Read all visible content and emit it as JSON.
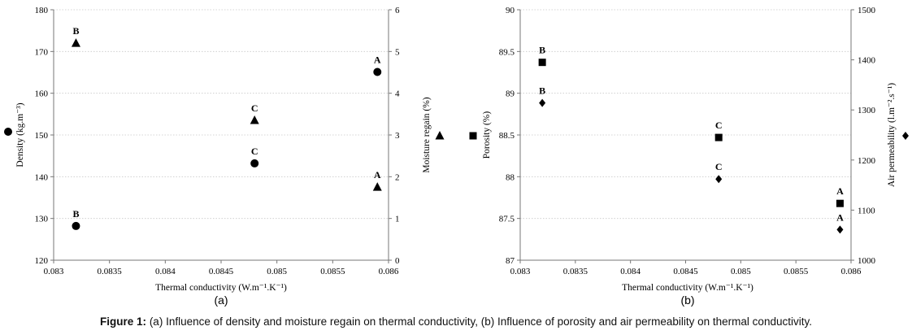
{
  "figure": {
    "caption_prefix": "Figure 1:",
    "caption_text": "(a) Influence of density and moisture regain on thermal conductivity, (b) Influence of porosity and air permeability on thermal conductivity.",
    "color": "#000000"
  },
  "chart_data": [
    {
      "type": "scatter",
      "panel_label": "(a)",
      "xlabel": "Thermal conductivity (W.m⁻¹.K⁻¹)",
      "ylabel_left": "Density (kg.m⁻³)",
      "ylabel_right": "Moisture regain (%)",
      "xlim": [
        0.083,
        0.086
      ],
      "xticks": [
        0.083,
        0.0835,
        0.084,
        0.0845,
        0.085,
        0.0855,
        0.086
      ],
      "xtick_labels": [
        "0.083",
        "0.0835",
        "0.084",
        "0.0845",
        "0.085",
        "0.0855",
        "0.086"
      ],
      "ylim_left": [
        120,
        180
      ],
      "yticks_left": [
        120,
        130,
        140,
        150,
        160,
        170,
        180
      ],
      "ylim_right": [
        0,
        6
      ],
      "yticks_right": [
        0,
        1,
        2,
        3,
        4,
        5,
        6
      ],
      "grid": true,
      "legend_placement": "outside left and right of plot",
      "series": [
        {
          "marker": "circle",
          "axis": "left",
          "points": [
            {
              "x": 0.0832,
              "y": 128.2,
              "label": "B"
            },
            {
              "x": 0.0848,
              "y": 143.2,
              "label": "C"
            },
            {
              "x": 0.0859,
              "y": 165.1,
              "label": "A"
            }
          ]
        },
        {
          "marker": "triangle",
          "axis": "right",
          "points": [
            {
              "x": 0.0832,
              "y": 5.2,
              "label": "B"
            },
            {
              "x": 0.0848,
              "y": 3.35,
              "label": "C"
            },
            {
              "x": 0.0859,
              "y": 1.75,
              "label": "A"
            }
          ]
        }
      ]
    },
    {
      "type": "scatter",
      "panel_label": "(b)",
      "xlabel": "Thermal conductivity (W.m⁻¹.K⁻¹)",
      "ylabel_left": "Porosity (%)",
      "ylabel_right": "Air permeability (l.m⁻².s⁻¹)",
      "xlim": [
        0.083,
        0.086
      ],
      "xticks": [
        0.083,
        0.0835,
        0.084,
        0.0845,
        0.085,
        0.0855,
        0.086
      ],
      "xtick_labels": [
        "0.083",
        "0.0835",
        "0.084",
        "0.0845",
        "0.085",
        "0.0855",
        "0.086"
      ],
      "ylim_left": [
        87,
        90
      ],
      "yticks_left": [
        87,
        87.5,
        88,
        88.5,
        89,
        89.5,
        90
      ],
      "ytick_labels_left": [
        "87",
        "87.5",
        "88",
        "88.5",
        "89",
        "89.5",
        "90"
      ],
      "ylim_right": [
        1000,
        1500
      ],
      "yticks_right": [
        1000,
        1100,
        1200,
        1300,
        1400,
        1500
      ],
      "grid": true,
      "legend_placement": "outside left and right of plot",
      "series": [
        {
          "marker": "square",
          "axis": "left",
          "points": [
            {
              "x": 0.0832,
              "y": 89.37,
              "label": "B"
            },
            {
              "x": 0.0848,
              "y": 88.47,
              "label": "C"
            },
            {
              "x": 0.0859,
              "y": 87.68,
              "label": "A"
            }
          ]
        },
        {
          "marker": "diamond",
          "axis": "right",
          "points": [
            {
              "x": 0.0832,
              "y": 1314,
              "label": "B"
            },
            {
              "x": 0.0848,
              "y": 1162,
              "label": "C"
            },
            {
              "x": 0.0859,
              "y": 1061,
              "label": "A"
            }
          ]
        }
      ]
    }
  ]
}
